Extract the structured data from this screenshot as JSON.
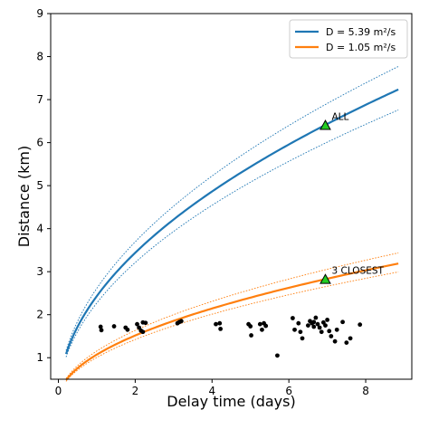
{
  "chart_data": {
    "type": "line",
    "xlabel": "Delay time (days)",
    "ylabel": "Distance (km)",
    "xlim": [
      -0.2,
      9.2
    ],
    "ylim": [
      0.5,
      9.0
    ],
    "xticks": [
      0,
      2,
      4,
      6,
      8
    ],
    "yticks": [
      1,
      2,
      3,
      4,
      5,
      6,
      7,
      8,
      9
    ],
    "grid": false,
    "legend_position": "top-right",
    "curve_x_range": [
      0.2,
      8.85
    ],
    "series": [
      {
        "name": "D = 5.39 m²/s",
        "color": "#1f77b4",
        "model": "sqrt",
        "coefficient": 2.432,
        "band_coefficients": [
          2.612,
          2.272
        ]
      },
      {
        "name": "D = 1.05 m²/s",
        "color": "#ff7f0e",
        "model": "sqrt",
        "coefficient": 1.072,
        "band_coefficients": [
          1.155,
          1.006
        ]
      }
    ],
    "markers": [
      {
        "label": "ALL",
        "x": 6.95,
        "y": 6.4,
        "color": "#22cc22"
      },
      {
        "label": "3 CLOSEST",
        "x": 6.95,
        "y": 2.82,
        "color": "#22cc22"
      }
    ],
    "points_color": "#000000",
    "points": [
      [
        1.1,
        1.72
      ],
      [
        1.12,
        1.64
      ],
      [
        1.45,
        1.73
      ],
      [
        1.75,
        1.7
      ],
      [
        1.8,
        1.65
      ],
      [
        2.05,
        1.78
      ],
      [
        2.1,
        1.7
      ],
      [
        2.15,
        1.63
      ],
      [
        2.2,
        1.82
      ],
      [
        2.27,
        1.81
      ],
      [
        2.2,
        1.6
      ],
      [
        3.1,
        1.8
      ],
      [
        3.15,
        1.83
      ],
      [
        3.2,
        1.85
      ],
      [
        4.1,
        1.78
      ],
      [
        4.2,
        1.8
      ],
      [
        4.22,
        1.67
      ],
      [
        4.95,
        1.78
      ],
      [
        5.0,
        1.73
      ],
      [
        5.02,
        1.52
      ],
      [
        5.25,
        1.78
      ],
      [
        5.3,
        1.65
      ],
      [
        5.35,
        1.8
      ],
      [
        5.4,
        1.74
      ],
      [
        5.7,
        1.05
      ],
      [
        6.1,
        1.92
      ],
      [
        6.15,
        1.65
      ],
      [
        6.25,
        1.8
      ],
      [
        6.3,
        1.6
      ],
      [
        6.35,
        1.45
      ],
      [
        6.5,
        1.75
      ],
      [
        6.55,
        1.85
      ],
      [
        6.6,
        1.8
      ],
      [
        6.65,
        1.72
      ],
      [
        6.7,
        1.93
      ],
      [
        6.75,
        1.78
      ],
      [
        6.8,
        1.7
      ],
      [
        6.85,
        1.6
      ],
      [
        6.9,
        1.82
      ],
      [
        6.95,
        1.75
      ],
      [
        7.0,
        1.88
      ],
      [
        7.05,
        1.62
      ],
      [
        7.1,
        1.5
      ],
      [
        7.2,
        1.38
      ],
      [
        7.25,
        1.65
      ],
      [
        7.4,
        1.83
      ],
      [
        7.5,
        1.35
      ],
      [
        7.6,
        1.45
      ],
      [
        7.85,
        1.77
      ],
      [
        6.65,
        1.83
      ]
    ]
  }
}
